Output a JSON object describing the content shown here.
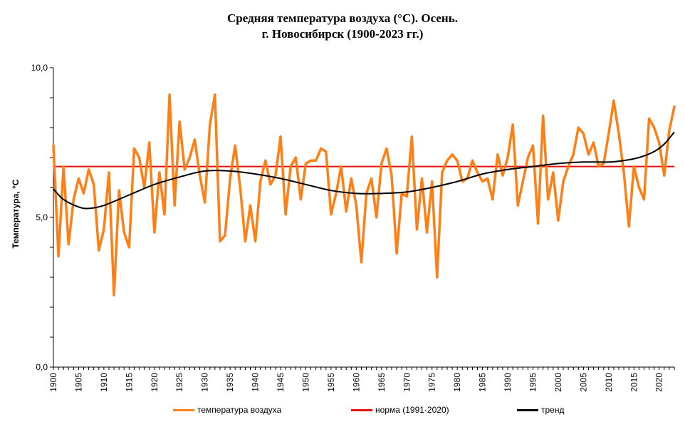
{
  "chart_data": {
    "type": "line",
    "title_line1": "Средняя температура воздуха (°С). Осень.",
    "title_line2": "г. Новосибирск (1900-2023 гг.)",
    "ylabel": "Температура, °С",
    "ylim": [
      0,
      10
    ],
    "y_ticks": [
      "0,0",
      "5,0",
      "10,0"
    ],
    "x_ticks": [
      "1900",
      "1905",
      "1910",
      "1915",
      "1920",
      "1925",
      "1930",
      "1935",
      "1940",
      "1945",
      "1950",
      "1955",
      "1960",
      "1965",
      "1970",
      "1975",
      "1980",
      "1985",
      "1990",
      "1995",
      "2000",
      "2005",
      "2010",
      "2015",
      "2020"
    ],
    "years_start": 1900,
    "years_end": 2023,
    "series": [
      {
        "name": "температура воздуха",
        "color": "#ff7f17",
        "values": [
          7.4,
          3.7,
          6.7,
          4.1,
          5.6,
          6.3,
          5.8,
          6.6,
          6.1,
          3.9,
          4.6,
          6.5,
          2.4,
          5.9,
          4.5,
          4.0,
          7.3,
          7.0,
          6.0,
          7.5,
          4.5,
          6.5,
          5.1,
          9.1,
          5.4,
          8.2,
          6.6,
          7.0,
          7.6,
          6.4,
          5.5,
          8.1,
          9.1,
          4.2,
          4.4,
          6.3,
          7.4,
          6.0,
          4.2,
          5.4,
          4.2,
          6.2,
          6.9,
          6.1,
          6.4,
          7.7,
          5.1,
          6.7,
          7.0,
          5.6,
          6.8,
          6.9,
          6.9,
          7.3,
          7.2,
          5.1,
          5.8,
          6.7,
          5.2,
          6.3,
          5.4,
          3.5,
          5.8,
          6.3,
          5.0,
          6.8,
          7.3,
          6.4,
          3.8,
          5.8,
          5.7,
          7.7,
          4.6,
          6.3,
          4.5,
          6.2,
          3.0,
          6.5,
          6.9,
          7.1,
          6.9,
          6.2,
          6.3,
          6.9,
          6.5,
          6.2,
          6.3,
          5.6,
          7.1,
          6.4,
          7.0,
          8.1,
          5.4,
          6.2,
          7.0,
          7.4,
          4.8,
          8.4,
          5.6,
          6.5,
          4.9,
          6.2,
          6.7,
          7.1,
          8.0,
          7.8,
          7.1,
          7.5,
          6.7,
          6.8,
          7.8,
          8.9,
          7.8,
          6.5,
          4.7,
          6.7,
          6.0,
          5.6,
          8.3,
          8.0,
          7.5,
          6.4,
          7.9,
          8.7
        ]
      },
      {
        "name": "норма (1991-2020)",
        "color": "#e8120c",
        "value": 6.7
      },
      {
        "name": "тренд",
        "color": "#000000",
        "years": [
          1900,
          1902,
          1905,
          1907,
          1910,
          1915,
          1920,
          1925,
          1930,
          1935,
          1940,
          1945,
          1950,
          1955,
          1960,
          1965,
          1970,
          1975,
          1980,
          1985,
          1990,
          1995,
          2000,
          2005,
          2010,
          2013,
          2016,
          2019,
          2021,
          2023
        ],
        "values": [
          5.95,
          5.6,
          5.35,
          5.3,
          5.4,
          5.75,
          6.1,
          6.35,
          6.55,
          6.55,
          6.45,
          6.3,
          6.1,
          5.9,
          5.8,
          5.8,
          5.85,
          6.0,
          6.2,
          6.45,
          6.6,
          6.7,
          6.8,
          6.85,
          6.85,
          6.9,
          7.0,
          7.2,
          7.45,
          7.85
        ]
      }
    ],
    "legend_position": "bottom"
  }
}
